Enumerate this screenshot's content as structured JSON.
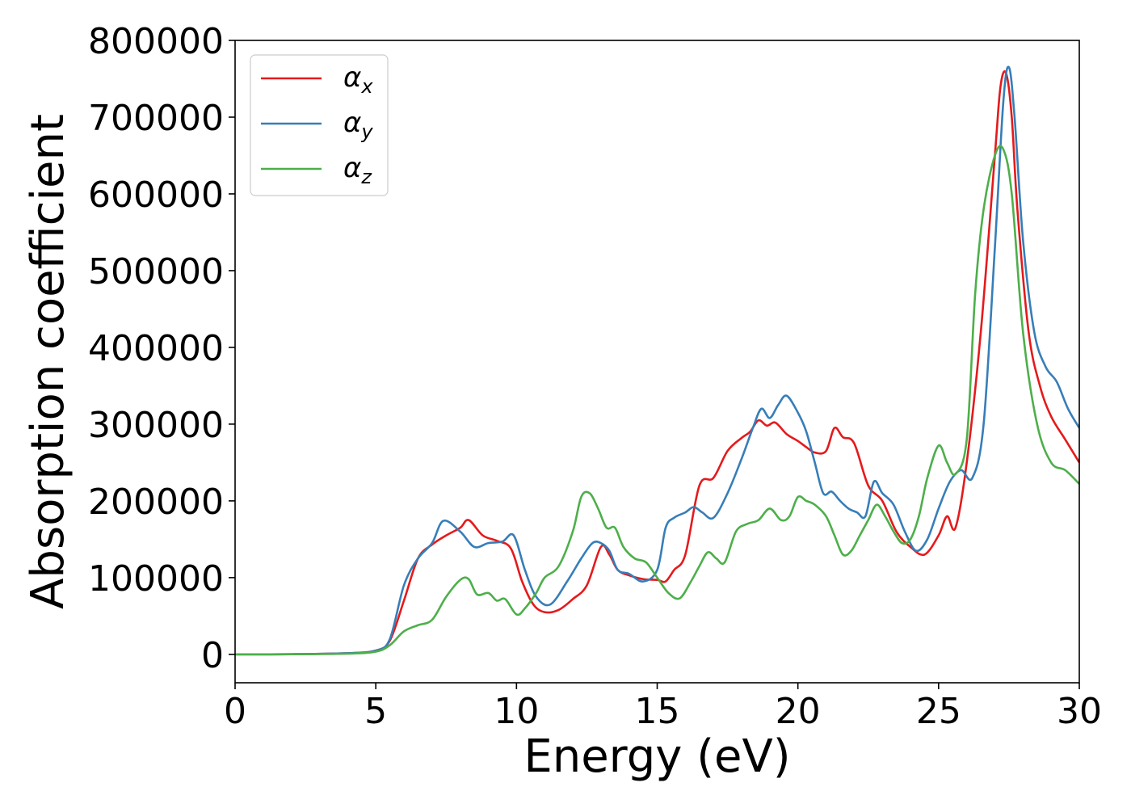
{
  "chart_data": {
    "type": "line",
    "xlabel": "Energy (eV)",
    "ylabel": "Absorption coefficient",
    "xlim": [
      0,
      30
    ],
    "ylim": [
      -37000,
      800000
    ],
    "xticks": [
      0,
      5,
      10,
      15,
      20,
      25,
      30
    ],
    "xtick_labels": [
      "0",
      "5",
      "10",
      "15",
      "20",
      "25",
      "30"
    ],
    "yticks": [
      0,
      100000,
      200000,
      300000,
      400000,
      500000,
      600000,
      700000,
      800000
    ],
    "ytick_labels": [
      "0",
      "100000",
      "200000",
      "300000",
      "400000",
      "500000",
      "600000",
      "700000",
      "800000"
    ],
    "grid": false,
    "legend_position": "top-left",
    "series": [
      {
        "name": "α",
        "subscript": "x",
        "color": "#e41a1c",
        "x": [
          0,
          2,
          4,
          5,
          5.5,
          6,
          6.5,
          7,
          7.5,
          8,
          8.3,
          8.8,
          9.3,
          9.8,
          10.2,
          10.6,
          11,
          11.5,
          12,
          12.5,
          13,
          13.3,
          13.6,
          14,
          14.5,
          15,
          15.3,
          15.6,
          16,
          16.5,
          17,
          17.5,
          18,
          18.3,
          18.6,
          18.9,
          19.2,
          19.6,
          20,
          20.3,
          20.6,
          21,
          21.3,
          21.6,
          22,
          22.5,
          23,
          23.5,
          24,
          24.5,
          25,
          25.3,
          25.6,
          26,
          26.5,
          27,
          27.2,
          27.4,
          27.6,
          27.8,
          28.2,
          28.6,
          29,
          29.5,
          30
        ],
        "y": [
          0,
          200,
          1500,
          5000,
          18000,
          70000,
          125000,
          143000,
          155000,
          165000,
          175000,
          155000,
          148000,
          138000,
          95000,
          65000,
          55000,
          58000,
          72000,
          90000,
          140000,
          130000,
          110000,
          103000,
          98000,
          97000,
          95000,
          110000,
          130000,
          220000,
          230000,
          265000,
          282000,
          290000,
          305000,
          298000,
          302000,
          287000,
          278000,
          270000,
          263000,
          265000,
          295000,
          283000,
          275000,
          220000,
          200000,
          160000,
          140000,
          130000,
          155000,
          180000,
          165000,
          250000,
          420000,
          650000,
          740000,
          757000,
          700000,
          580000,
          420000,
          350000,
          310000,
          280000,
          250000
        ]
      },
      {
        "name": "α",
        "subscript": "y",
        "color": "#377eb8",
        "x": [
          0,
          2,
          4,
          5,
          5.5,
          6,
          6.5,
          7,
          7.4,
          8,
          8.5,
          9,
          9.5,
          9.9,
          10.3,
          10.7,
          11.2,
          11.8,
          12.3,
          12.7,
          13,
          13.3,
          13.6,
          14,
          14.5,
          15,
          15.3,
          15.6,
          16,
          16.3,
          16.6,
          17,
          17.5,
          18,
          18.4,
          18.7,
          19,
          19.3,
          19.6,
          20,
          20.3,
          20.6,
          20.9,
          21.2,
          21.5,
          21.8,
          22.1,
          22.4,
          22.7,
          23,
          23.4,
          23.8,
          24.2,
          24.6,
          25,
          25.4,
          25.8,
          26.2,
          26.6,
          27,
          27.3,
          27.5,
          27.7,
          28,
          28.4,
          28.8,
          29.2,
          29.6,
          30
        ],
        "y": [
          0,
          200,
          1500,
          5000,
          20000,
          90000,
          125000,
          145000,
          174000,
          160000,
          140000,
          145000,
          147000,
          155000,
          110000,
          75000,
          65000,
          95000,
          125000,
          145000,
          145000,
          135000,
          110000,
          105000,
          95000,
          110000,
          165000,
          178000,
          185000,
          192000,
          185000,
          178000,
          210000,
          255000,
          295000,
          320000,
          308000,
          325000,
          337000,
          315000,
          290000,
          250000,
          210000,
          212000,
          200000,
          190000,
          185000,
          180000,
          225000,
          210000,
          195000,
          160000,
          135000,
          150000,
          190000,
          225000,
          240000,
          230000,
          300000,
          530000,
          720000,
          765000,
          700000,
          540000,
          420000,
          375000,
          355000,
          320000,
          295000
        ]
      },
      {
        "name": "α",
        "subscript": "z",
        "color": "#4daf4a",
        "x": [
          0,
          2,
          4,
          5,
          5.5,
          6,
          6.5,
          7,
          7.5,
          8,
          8.3,
          8.6,
          9,
          9.3,
          9.6,
          10,
          10.3,
          10.7,
          11,
          11.5,
          12,
          12.3,
          12.6,
          12.9,
          13.2,
          13.5,
          13.8,
          14.2,
          14.6,
          15,
          15.4,
          15.8,
          16.2,
          16.5,
          16.8,
          17.1,
          17.4,
          17.8,
          18.2,
          18.6,
          19,
          19.4,
          19.7,
          20,
          20.3,
          20.6,
          21,
          21.3,
          21.6,
          21.9,
          22.2,
          22.5,
          22.8,
          23.1,
          23.4,
          23.7,
          24,
          24.3,
          24.6,
          25,
          25.3,
          25.6,
          26,
          26.3,
          26.6,
          27,
          27.3,
          27.6,
          28,
          28.5,
          29,
          29.5,
          30
        ],
        "y": [
          0,
          200,
          1000,
          3500,
          12000,
          30000,
          38000,
          45000,
          75000,
          97000,
          98000,
          78000,
          80000,
          70000,
          72000,
          52000,
          60000,
          80000,
          100000,
          115000,
          160000,
          205000,
          210000,
          190000,
          165000,
          165000,
          140000,
          125000,
          120000,
          100000,
          80000,
          73000,
          95000,
          115000,
          133000,
          125000,
          120000,
          160000,
          170000,
          175000,
          190000,
          175000,
          180000,
          205000,
          200000,
          195000,
          180000,
          155000,
          130000,
          135000,
          155000,
          175000,
          195000,
          180000,
          160000,
          145000,
          150000,
          180000,
          230000,
          272000,
          250000,
          235000,
          280000,
          470000,
          580000,
          650000,
          658000,
          600000,
          420000,
          300000,
          250000,
          240000,
          222000
        ]
      }
    ]
  }
}
